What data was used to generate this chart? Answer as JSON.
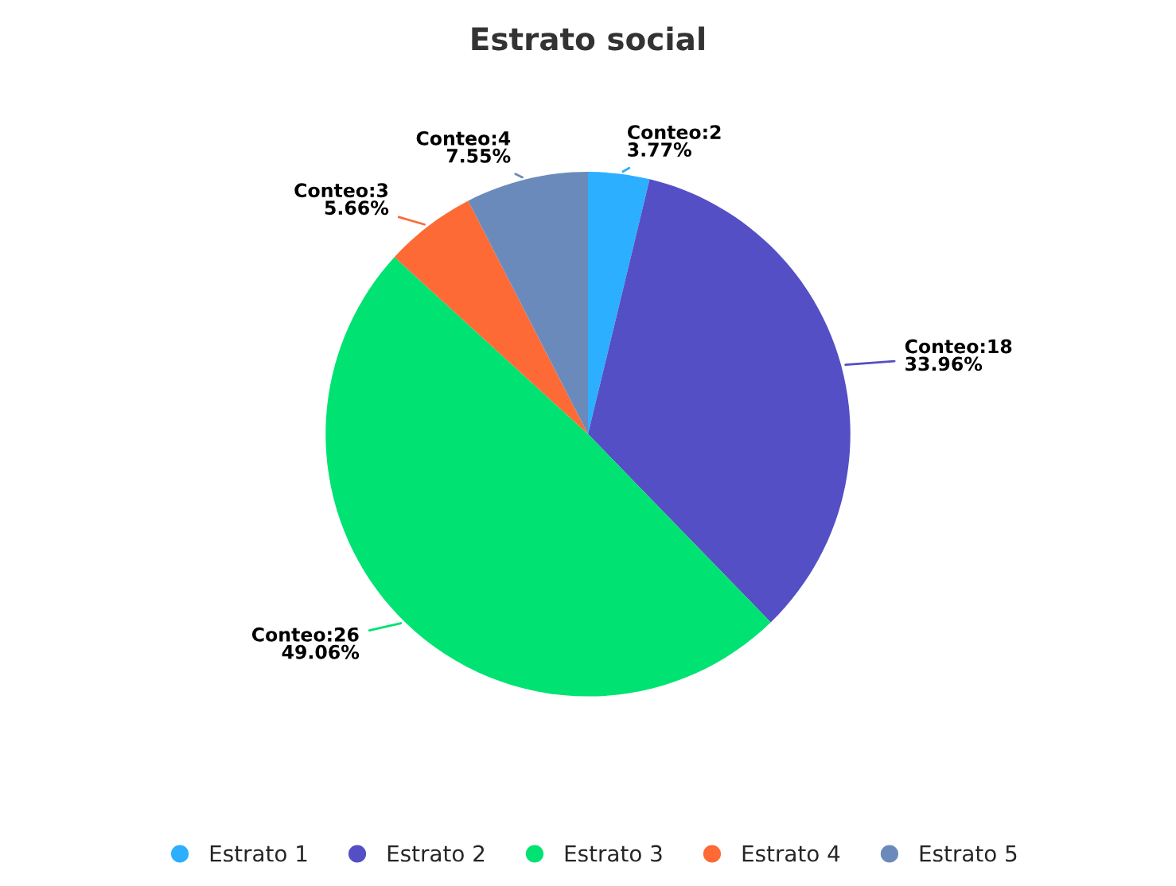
{
  "chart_data": {
    "type": "pie",
    "title": "Estrato social",
    "categories": [
      "Estrato 1",
      "Estrato 2",
      "Estrato 3",
      "Estrato 4",
      "Estrato 5"
    ],
    "values": [
      2,
      18,
      26,
      3,
      4
    ],
    "colors": [
      "#2caffe",
      "#544fc5",
      "#00e272",
      "#fe6a35",
      "#6b8abc"
    ],
    "value_labels": [
      "Conteo:2\n3.77%",
      "Conteo:18\n33.96%",
      "Conteo:26\n49.06%",
      "Conteo:3\n5.66%",
      "Conteo:4\n7.55%"
    ],
    "legend": "bottom"
  }
}
